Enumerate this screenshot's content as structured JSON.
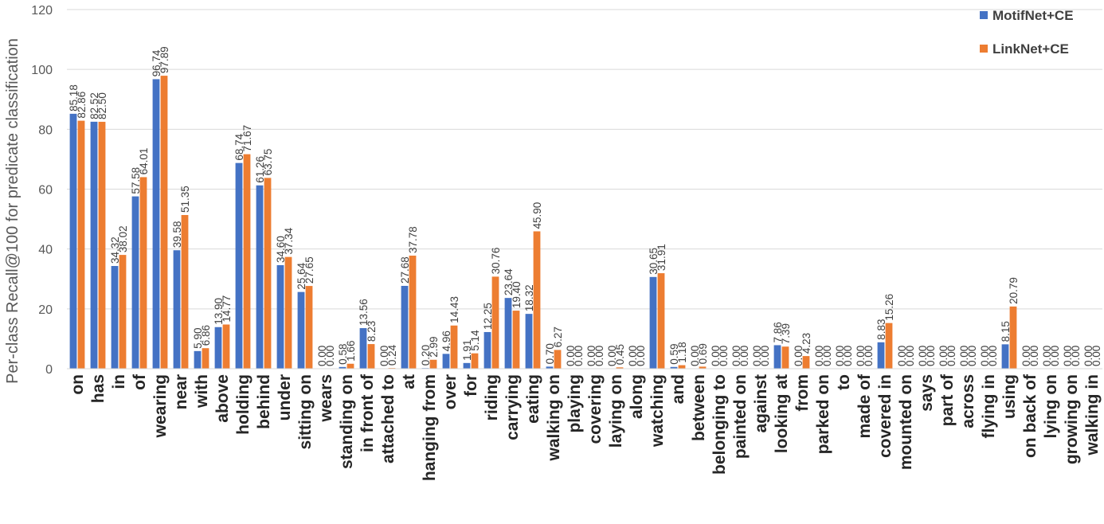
{
  "chart_data": {
    "type": "bar",
    "title": "",
    "xlabel": "",
    "ylabel": "Per-class Recall@100 for predicate classification",
    "ylim": [
      0,
      120
    ],
    "yticks": [
      0,
      20,
      40,
      60,
      80,
      100,
      120
    ],
    "grid": true,
    "legend_position": "top-right",
    "categories": [
      "on",
      "has",
      "in",
      "of",
      "wearing",
      "near",
      "with",
      "above",
      "holding",
      "behind",
      "under",
      "sitting on",
      "wears",
      "standing on",
      "in front of",
      "attached to",
      "at",
      "hanging from",
      "over",
      "for",
      "riding",
      "carrying",
      "eating",
      "walking on",
      "playing",
      "covering",
      "laying on",
      "along",
      "watching",
      "and",
      "between",
      "belonging to",
      "painted on",
      "against",
      "looking at",
      "from",
      "parked on",
      "to",
      "made of",
      "covered in",
      "mounted on",
      "says",
      "part of",
      "across",
      "flying in",
      "using",
      "on back of",
      "lying on",
      "growing on",
      "walking in"
    ],
    "series": [
      {
        "name": "MotifNet+CE",
        "color": "#4472C4",
        "values": [
          85.18,
          82.52,
          34.32,
          57.58,
          96.74,
          39.58,
          5.9,
          13.9,
          68.74,
          61.26,
          34.6,
          25.64,
          0.0,
          0.58,
          13.56,
          0.0,
          27.68,
          0.2,
          4.96,
          1.91,
          12.25,
          23.64,
          18.32,
          0.7,
          0.0,
          0.0,
          0.0,
          0.0,
          30.65,
          0.59,
          0.0,
          0.0,
          0.0,
          0.0,
          7.86,
          0.0,
          0.0,
          0.0,
          0.0,
          8.83,
          0.0,
          0.0,
          0.0,
          0.0,
          0.0,
          8.15,
          0.0,
          0.0,
          0.0,
          0.0
        ],
        "labels": [
          "85.18",
          "82.52",
          "34.32",
          "57.58",
          "96.74",
          "39.58",
          "5.90",
          "13.90",
          "68.74",
          "61.26",
          "34.60",
          "25.64",
          "0.00",
          "0.58",
          "13.56",
          "0.00",
          "27.68",
          "0.20",
          "4.96",
          "1.91",
          "12.25",
          "23.64",
          "18.32",
          "0.70",
          "0.00",
          "0.00",
          "0.00",
          "0.00",
          "30.65",
          "0.59",
          "0.00",
          "0.00",
          "0.00",
          "0.00",
          "7.86",
          "0.00",
          "0.00",
          "0.00",
          "0.00",
          "8.83",
          "0.00",
          "0.00",
          "0.00",
          "0.00",
          "0.00",
          "8.15",
          "0.00",
          "0.00",
          "0.00",
          "0.00"
        ]
      },
      {
        "name": "LinkNet+CE",
        "color": "#ED7D31",
        "values": [
          82.86,
          82.5,
          38.02,
          64.01,
          97.89,
          51.35,
          6.86,
          14.77,
          71.67,
          63.75,
          37.34,
          27.65,
          0.0,
          1.66,
          8.23,
          0.24,
          37.78,
          2.99,
          14.43,
          5.14,
          30.76,
          19.4,
          45.9,
          6.27,
          0.0,
          0.0,
          0.45,
          0.0,
          31.91,
          1.18,
          0.69,
          0.0,
          0.0,
          0.0,
          7.39,
          4.23,
          0.0,
          0.0,
          0.0,
          15.26,
          0.0,
          0.0,
          0.0,
          0.0,
          0.0,
          20.79,
          0.0,
          0.0,
          0.0,
          0.0
        ],
        "labels": [
          "82.86",
          "82.50",
          "38.02",
          "64.01",
          "97.89",
          "51.35",
          "6.86",
          "14.77",
          "71.67",
          "63.75",
          "37.34",
          "27.65",
          "0.00",
          "1.66",
          "8.23",
          "0.24",
          "37.78",
          "2.99",
          "14.43",
          "5.14",
          "30.76",
          "19.40",
          "45.90",
          "6.27",
          "0.00",
          "0.00",
          "0.45",
          "0.00",
          "31.91",
          "1.18",
          "0.69",
          "0.00",
          "0.00",
          "0.00",
          "7.39",
          "4.23",
          "0.00",
          "0.00",
          "0.00",
          "15.26",
          "0.00",
          "0.00",
          "0.00",
          "0.00",
          "0.00",
          "20.79",
          "0.00",
          "0.00",
          "0.00",
          "0.00"
        ]
      }
    ]
  }
}
